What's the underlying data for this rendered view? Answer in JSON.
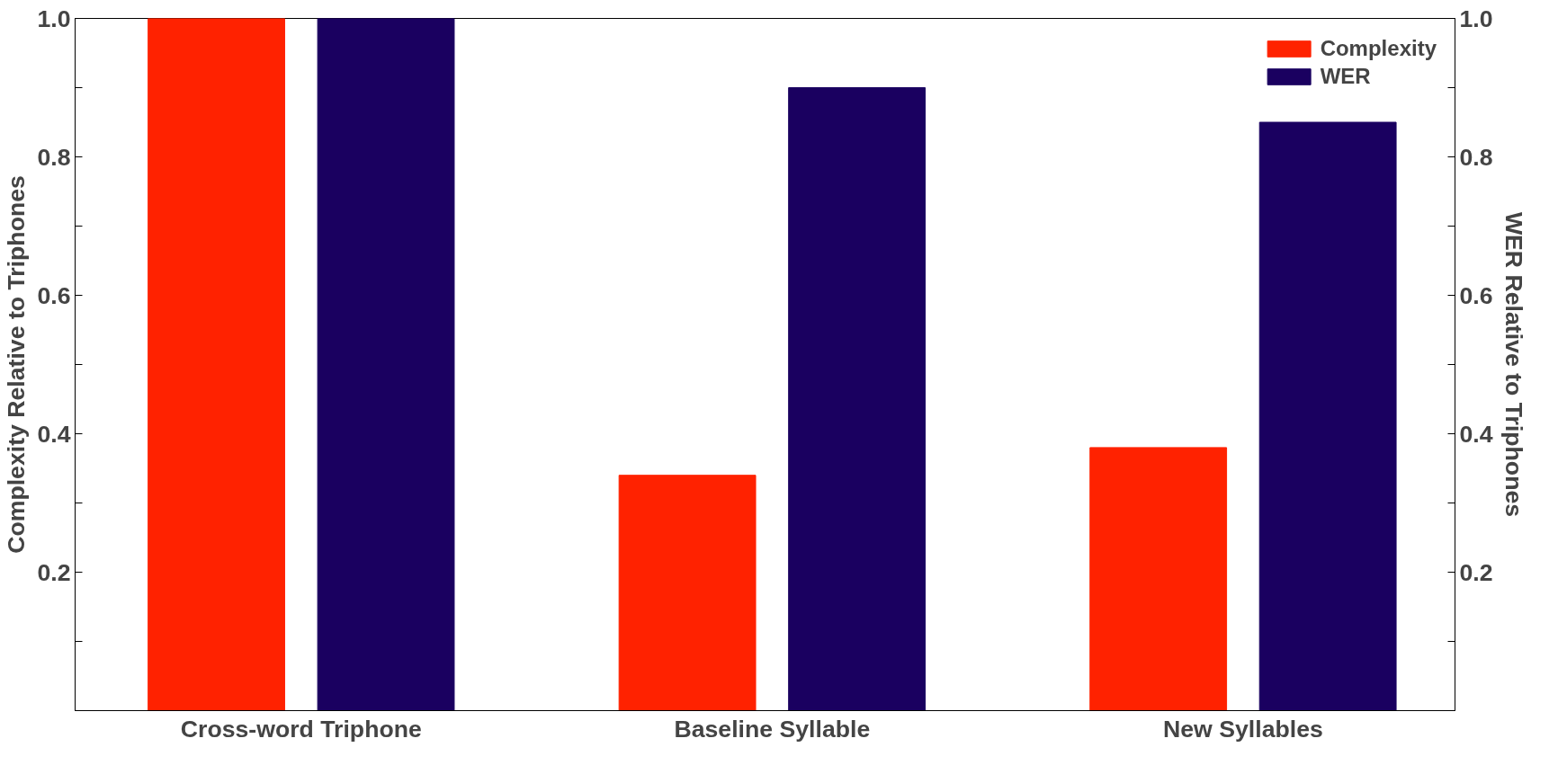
{
  "chart_data": {
    "type": "bar",
    "categories": [
      "Cross-word Triphone",
      "Baseline Syllable",
      "New Syllables"
    ],
    "series": [
      {
        "name": "Complexity",
        "color": "#ff2200",
        "values": [
          1.0,
          0.34,
          0.38
        ]
      },
      {
        "name": "WER",
        "color": "#1a0060",
        "values": [
          1.0,
          0.9,
          0.85
        ],
        "axis": "y2"
      }
    ],
    "ylabel": "Complexity Relative to Triphones",
    "y2label": "WER Relative to Triphones",
    "ylim": [
      0,
      1
    ],
    "yticks": [
      {
        "value": 0.1,
        "label": null
      },
      {
        "value": 0.2,
        "label": "0.2"
      },
      {
        "value": 0.3,
        "label": null
      },
      {
        "value": 0.4,
        "label": "0.4"
      },
      {
        "value": 0.5,
        "label": null
      },
      {
        "value": 0.6,
        "label": "0.6"
      },
      {
        "value": 0.7,
        "label": null
      },
      {
        "value": 0.8,
        "label": "0.8"
      },
      {
        "value": 0.9,
        "label": null
      },
      {
        "value": 1.0,
        "label": "1.0"
      }
    ],
    "y2lim": [
      0,
      1
    ],
    "y2ticks": [
      {
        "value": 0.1,
        "label": null
      },
      {
        "value": 0.2,
        "label": "0.2"
      },
      {
        "value": 0.3,
        "label": null
      },
      {
        "value": 0.4,
        "label": "0.4"
      },
      {
        "value": 0.5,
        "label": null
      },
      {
        "value": 0.6,
        "label": "0.6"
      },
      {
        "value": 0.7,
        "label": null
      },
      {
        "value": 0.8,
        "label": "0.8"
      },
      {
        "value": 0.9,
        "label": null
      },
      {
        "value": 1.0,
        "label": "1.0"
      }
    ],
    "legend": "top right",
    "grid": false
  }
}
